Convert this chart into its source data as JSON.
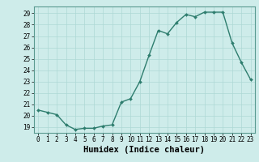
{
  "x": [
    0,
    1,
    2,
    3,
    4,
    5,
    6,
    7,
    8,
    9,
    10,
    11,
    12,
    13,
    14,
    15,
    16,
    17,
    18,
    19,
    20,
    21,
    22,
    23
  ],
  "y": [
    20.5,
    20.3,
    20.1,
    19.2,
    18.8,
    18.9,
    18.9,
    19.1,
    19.2,
    21.2,
    21.5,
    23.0,
    25.3,
    27.5,
    27.2,
    28.2,
    28.9,
    28.7,
    29.1,
    29.1,
    29.1,
    26.4,
    24.7,
    23.2
  ],
  "line_color": "#2e7d6e",
  "marker": "D",
  "marker_size": 2.0,
  "line_width": 1.0,
  "bg_color": "#ceecea",
  "grid_color": "#aed8d5",
  "xlabel": "Humidex (Indice chaleur)",
  "ylabel_ticks": [
    19,
    20,
    21,
    22,
    23,
    24,
    25,
    26,
    27,
    28,
    29
  ],
  "ylim": [
    18.5,
    29.6
  ],
  "xlim": [
    -0.5,
    23.5
  ],
  "xlabel_fontsize": 7.5,
  "tick_fontsize": 5.5
}
